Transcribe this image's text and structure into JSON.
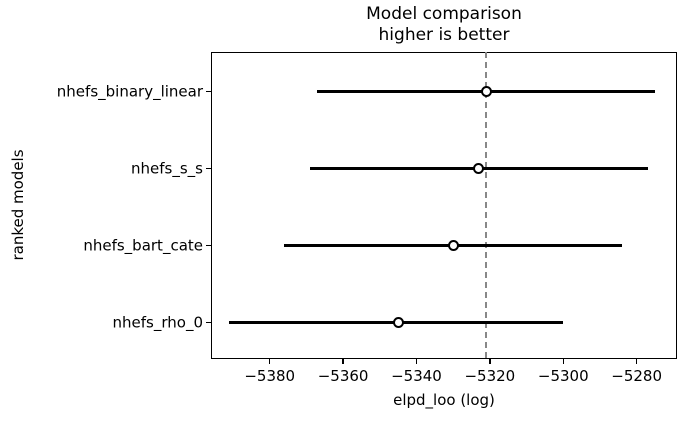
{
  "chart_data": {
    "type": "scatter",
    "variant": "forest-errorbar-model-comparison",
    "title": "Model comparison",
    "subtitle": "higher is better",
    "xlabel": "elpd_loo (log)",
    "ylabel": "ranked models",
    "xlim": [
      -5396,
      -5269
    ],
    "xticks": [
      -5380,
      -5360,
      -5340,
      -5320,
      -5300,
      -5280
    ],
    "grid": false,
    "legend": null,
    "marker": "open-circle",
    "ref_line": {
      "x": -5321,
      "style": "dashed",
      "color": "#888888"
    },
    "series": [
      {
        "name": "nhefs_binary_linear",
        "elpd_loo": -5321,
        "lower": -5367,
        "upper": -5275
      },
      {
        "name": "nhefs_s_s",
        "elpd_loo": -5323,
        "lower": -5369,
        "upper": -5277
      },
      {
        "name": "nhefs_bart_cate",
        "elpd_loo": -5330,
        "lower": -5376,
        "upper": -5284
      },
      {
        "name": "nhefs_rho_0",
        "elpd_loo": -5345,
        "lower": -5391,
        "upper": -5300
      }
    ],
    "colors": {
      "errorbar": "#000000",
      "marker_fill": "#ffffff",
      "marker_edge": "#000000",
      "reference": "#888888",
      "text": "#000000",
      "background": "#ffffff"
    }
  }
}
